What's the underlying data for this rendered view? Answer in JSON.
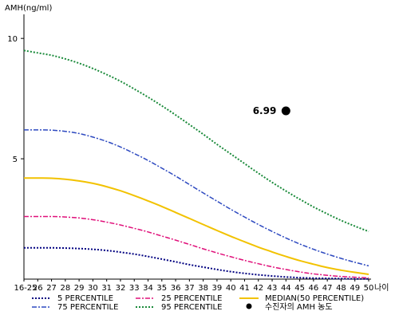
{
  "chart_data": {
    "type": "line",
    "ylabel": "AMH(ng/ml)",
    "xlabel": "나이",
    "x_categories": [
      "16-25",
      "26",
      "27",
      "28",
      "29",
      "30",
      "31",
      "32",
      "33",
      "34",
      "35",
      "36",
      "37",
      "38",
      "39",
      "40",
      "41",
      "42",
      "43",
      "44",
      "45",
      "46",
      "47",
      "48",
      "49",
      "50"
    ],
    "ylim": [
      0,
      11
    ],
    "y_ticks": [
      5,
      10
    ],
    "grid": false,
    "series": [
      {
        "name": "5 PERCENTILE",
        "color": "#000080",
        "dash": "dot",
        "values": [
          1.3,
          1.3,
          1.3,
          1.29,
          1.27,
          1.24,
          1.19,
          1.12,
          1.04,
          0.94,
          0.83,
          0.72,
          0.6,
          0.5,
          0.4,
          0.31,
          0.24,
          0.18,
          0.13,
          0.09,
          0.06,
          0.04,
          0.03,
          0.02,
          0.01,
          0.01
        ]
      },
      {
        "name": "25 PERCENTILE",
        "color": "#e0107a",
        "dash": "dashdot",
        "values": [
          2.6,
          2.6,
          2.6,
          2.58,
          2.54,
          2.47,
          2.37,
          2.25,
          2.11,
          1.96,
          1.79,
          1.62,
          1.44,
          1.26,
          1.09,
          0.93,
          0.78,
          0.64,
          0.51,
          0.4,
          0.3,
          0.22,
          0.16,
          0.11,
          0.08,
          0.05
        ]
      },
      {
        "name": "MEDIAN(50 PERCENTILE)",
        "color": "#f2c200",
        "dash": "solid",
        "values": [
          4.2,
          4.2,
          4.19,
          4.15,
          4.08,
          3.98,
          3.84,
          3.67,
          3.47,
          3.25,
          3.02,
          2.77,
          2.52,
          2.27,
          2.02,
          1.78,
          1.55,
          1.33,
          1.13,
          0.94,
          0.77,
          0.62,
          0.48,
          0.37,
          0.28,
          0.2
        ]
      },
      {
        "name": "75 PERCENTILE",
        "color": "#2d49c0",
        "dash": "dashdot",
        "values": [
          6.2,
          6.2,
          6.19,
          6.14,
          6.05,
          5.9,
          5.72,
          5.49,
          5.22,
          4.93,
          4.61,
          4.28,
          3.93,
          3.58,
          3.24,
          2.9,
          2.58,
          2.27,
          1.98,
          1.71,
          1.46,
          1.24,
          1.04,
          0.86,
          0.7,
          0.55
        ]
      },
      {
        "name": "95 PERCENTILE",
        "color": "#1a8a3a",
        "dash": "dot",
        "values": [
          9.5,
          9.4,
          9.3,
          9.15,
          8.97,
          8.75,
          8.5,
          8.22,
          7.9,
          7.56,
          7.2,
          6.82,
          6.42,
          6.02,
          5.6,
          5.2,
          4.8,
          4.4,
          4.02,
          3.66,
          3.32,
          3.0,
          2.71,
          2.44,
          2.2,
          1.98
        ]
      }
    ],
    "point": {
      "name": "수진자의 AMH 농도",
      "x": "44",
      "y": 6.99,
      "label": "6.99",
      "color": "#000000"
    }
  }
}
